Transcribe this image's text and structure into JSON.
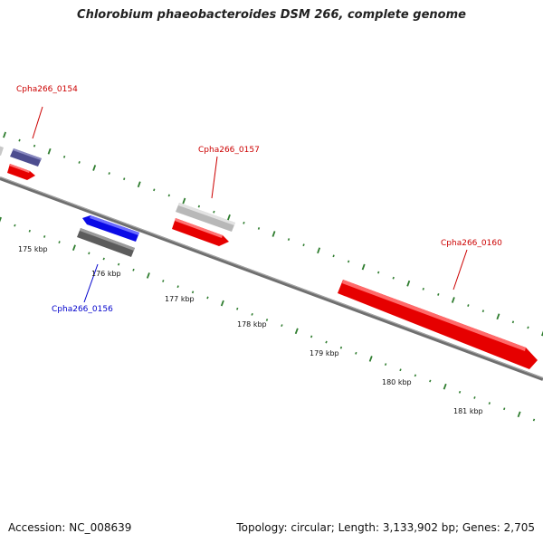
{
  "title": "Chlorobium phaeobacteroides DSM 266, complete genome",
  "footer": {
    "accession": "Accession: NC_008639",
    "topology": "Topology: circular; Length: 3,133,902 bp; Genes: 2,705"
  },
  "colors": {
    "backbone": "#7a7a7a",
    "tick": "#2f7d2f",
    "gene_label_red": "#cc0000",
    "gene_label_blue": "#0000cc"
  },
  "axis": {
    "tick_labels": [
      "175 kbp",
      "176 kbp",
      "177 kbp",
      "178 kbp",
      "179 kbp",
      "180 kbp",
      "181 kbp"
    ]
  },
  "gene_labels": [
    {
      "text": "Cpha266_0154",
      "color": "red"
    },
    {
      "text": "Cpha266_0157",
      "color": "red"
    },
    {
      "text": "Cpha266_0160",
      "color": "red"
    },
    {
      "text": "Cpha266_0156",
      "color": "blue"
    }
  ]
}
